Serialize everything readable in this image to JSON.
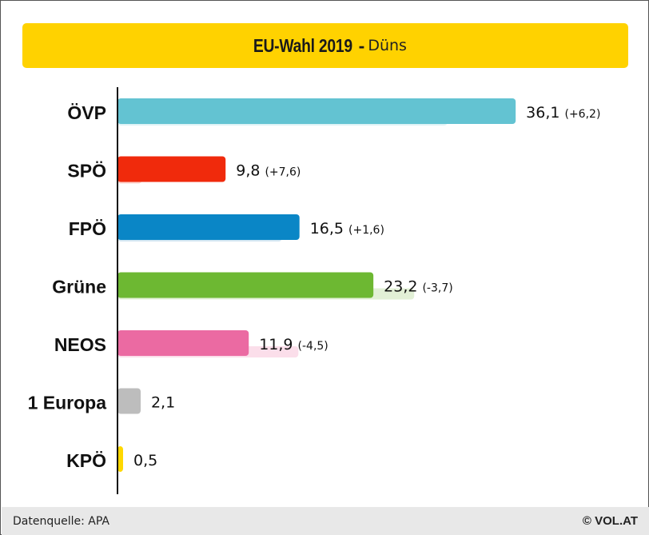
{
  "chart_data": {
    "type": "bar",
    "orientation": "horizontal",
    "title": "EU-Wahl 2019",
    "title_separator": "-",
    "subtitle": "Düns",
    "categories": [
      "ÖVP",
      "SPÖ",
      "FPÖ",
      "Grüne",
      "NEOS",
      "1 Europa",
      "KPÖ"
    ],
    "series": [
      {
        "name": "",
        "values": [
          36.1,
          9.8,
          16.5,
          23.2,
          11.9,
          2.1,
          0.5
        ],
        "value_labels": [
          "36,1",
          "9,8",
          "16,5",
          "23,2",
          "11,9",
          "2,1",
          "0,5"
        ],
        "change_labels": [
          "(+6,2)",
          "(+7,6)",
          "(+1,6)",
          "(-3,7)",
          "(-4,5)",
          "",
          ""
        ],
        "colors": [
          "#63c3d2",
          "#f02a0c",
          "#0a86c6",
          "#6db832",
          "#eb6aa2",
          "#bdbdbd",
          "#ffd800"
        ]
      },
      {
        "name": "",
        "values": [
          29.9,
          2.2,
          14.9,
          26.9,
          16.4,
          null,
          null
        ],
        "colors": [
          "#dff3f6",
          "#fdd3cc",
          "#d3e6f2",
          "#e2f0d6",
          "#fbdeea",
          "#eeeeee",
          "#fff6c2"
        ]
      }
    ],
    "xlim": [
      0,
      40
    ],
    "grid": false,
    "legend": "none"
  },
  "footer": {
    "source": "Datenquelle: APA",
    "brand": "© VOL.AT"
  }
}
